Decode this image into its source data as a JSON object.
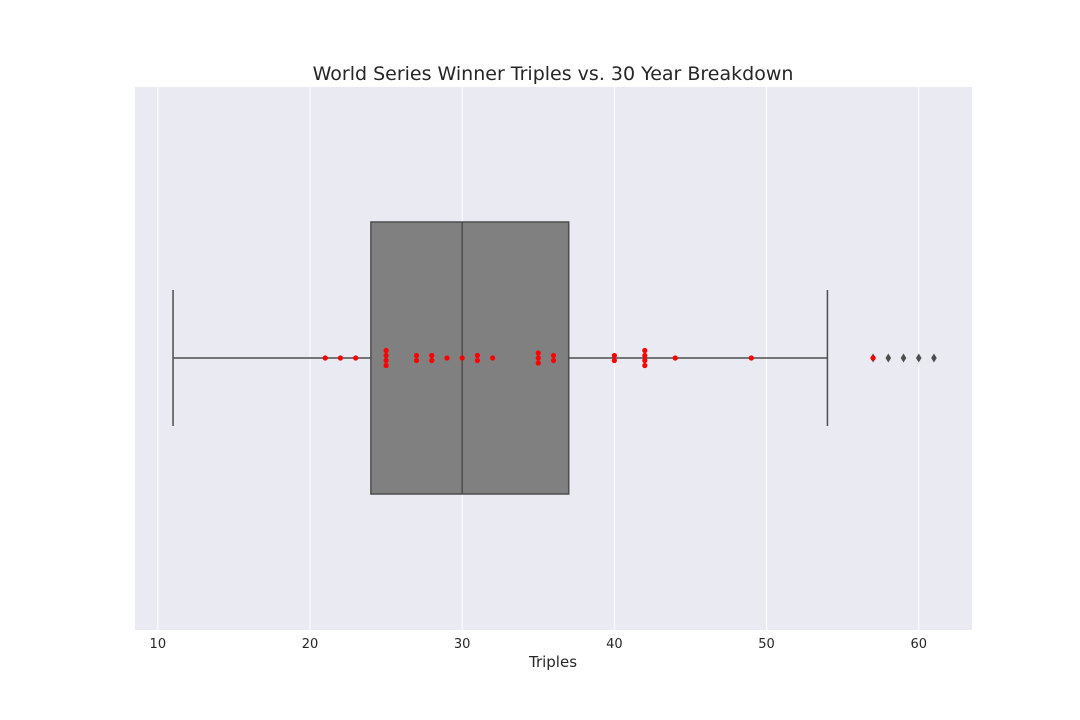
{
  "chart_data": {
    "type": "box",
    "title": "World Series Winner Triples vs. 30 Year Breakdown",
    "xlabel": "Triples",
    "ylabel": "",
    "xlim": [
      8.5,
      63.5
    ],
    "xticks": [
      10,
      20,
      30,
      40,
      50,
      60
    ],
    "grid": true,
    "orientation": "horizontal",
    "box": {
      "whisker_low": 11,
      "q1": 24,
      "median": 30,
      "q3": 37,
      "whisker_high": 54,
      "fliers": [
        57,
        58,
        59,
        60,
        61
      ],
      "color": "#808080",
      "line_color": "#4d4d4d"
    },
    "points": {
      "color": "#ff0000",
      "values": [
        21,
        22,
        23,
        25,
        25,
        25,
        25,
        27,
        27,
        28,
        28,
        29,
        30,
        31,
        31,
        32,
        35,
        35,
        35,
        36,
        36,
        40,
        40,
        42,
        42,
        42,
        42,
        44,
        49,
        57
      ]
    },
    "colors": {
      "plot_background": "#eaeaf2",
      "grid": "#ffffff"
    }
  }
}
